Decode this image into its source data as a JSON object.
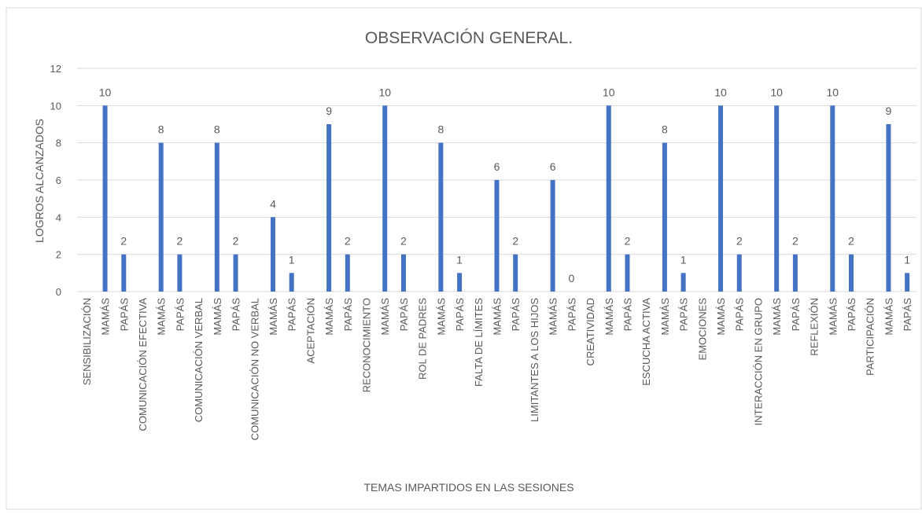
{
  "chart_data": {
    "type": "bar",
    "title": "OBSERVACIÓN GENERAL.",
    "y_label": "LOGROS ALCANZADOS",
    "x_label": "TEMAS IMPARTIDOS EN LAS SESIONES",
    "categories": [
      "SENSIBILIZACIÓN",
      "MAMÁS",
      "PAPÁS",
      "COMUNICACIÓN EFECTIVA",
      "MAMÁS",
      "PAPÁS",
      "COMUNICACIÓN VERBAL",
      "MAMÁS",
      "PAPÁS",
      "COMUNICACIÓN NO VERBAL",
      "MAMÁS",
      "PAPÁS",
      "ACEPTACIÓN",
      "MAMÁS",
      "PAPÁS",
      "RECONOCIMIENTO",
      "MAMÁS",
      "PAPÁS",
      "ROL DE PADRES",
      "MAMÁS",
      "PAPÁS",
      "FALTA DE LÍMITES",
      "MAMÁS",
      "PAPÁS",
      "LIMITANTES A LOS HIJOS",
      "MAMÁS",
      "PAPÁS",
      "CREATIVIDAD",
      "MAMÁS",
      "PAPÁS",
      "ESCUCHA ACTIVA",
      "MAMÁS",
      "PAPÁS",
      "EMOCIONES",
      "MAMÁS",
      "PAPÁS",
      "INTERACCIÓN EN GRUPO",
      "MAMÁS",
      "PAPÁS",
      "REFLEXIÓN",
      "MAMÁS",
      "PAPÁS",
      "PARTICIPACIÓN",
      "MAMÁS",
      "PAPÁS"
    ],
    "values": [
      null,
      10,
      2,
      null,
      8,
      2,
      null,
      8,
      2,
      null,
      4,
      1,
      null,
      9,
      2,
      null,
      10,
      2,
      null,
      8,
      1,
      null,
      6,
      2,
      null,
      6,
      0,
      null,
      10,
      2,
      null,
      8,
      1,
      null,
      10,
      2,
      null,
      10,
      2,
      null,
      10,
      2,
      null,
      9,
      1
    ],
    "color": "#4472c4",
    "ylim": [
      0,
      12
    ],
    "yticks": [
      0,
      2,
      4,
      6,
      8,
      10,
      12
    ],
    "grid": true,
    "data_labels": true
  }
}
